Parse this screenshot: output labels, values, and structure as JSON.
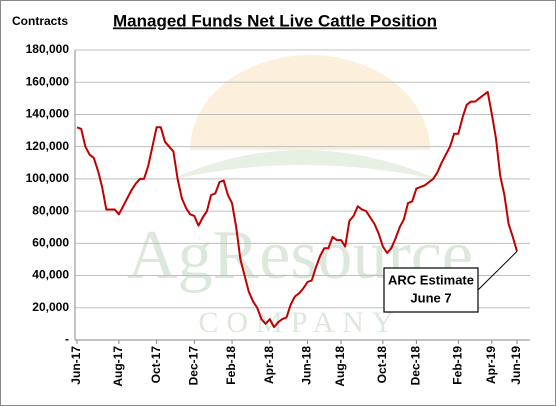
{
  "chart_data": {
    "type": "line",
    "title": "Managed Funds Net Live Cattle Position",
    "y_label": "Contracts",
    "annotation": [
      "ARC Estimate",
      "June 7"
    ],
    "watermark": [
      "AgResource",
      "COMPANY"
    ],
    "categories": [
      "Jun-17",
      null,
      null,
      null,
      null,
      null,
      null,
      null,
      null,
      null,
      "Aug-17",
      null,
      null,
      null,
      null,
      null,
      null,
      null,
      null,
      "Oct-17",
      null,
      null,
      null,
      null,
      null,
      null,
      null,
      null,
      "Dec-17",
      null,
      null,
      null,
      null,
      null,
      null,
      null,
      null,
      "Feb-18",
      null,
      null,
      null,
      null,
      null,
      null,
      null,
      null,
      "Apr-18",
      null,
      null,
      null,
      null,
      null,
      null,
      null,
      null,
      "Jun-18",
      null,
      null,
      null,
      null,
      null,
      null,
      null,
      "Aug-18",
      null,
      null,
      null,
      null,
      null,
      null,
      null,
      null,
      null,
      "Oct-18",
      null,
      null,
      null,
      null,
      null,
      null,
      null,
      "Dec-18",
      null,
      null,
      null,
      null,
      null,
      null,
      null,
      null,
      null,
      "Feb-19",
      null,
      null,
      null,
      null,
      null,
      null,
      null,
      "Apr-19",
      null,
      null,
      null,
      null,
      null,
      "Jun-19"
    ],
    "values": [
      132000,
      131000,
      120000,
      115000,
      113000,
      105000,
      95000,
      81000,
      81000,
      81000,
      78000,
      83000,
      88000,
      93000,
      97000,
      100000,
      100000,
      108000,
      120000,
      132000,
      132000,
      123000,
      120000,
      117000,
      100000,
      88000,
      82000,
      78000,
      77000,
      71000,
      76000,
      80000,
      90000,
      91000,
      98000,
      99000,
      90000,
      85000,
      70000,
      50000,
      40000,
      30000,
      24000,
      20000,
      13000,
      10000,
      13000,
      8000,
      11000,
      13000,
      14000,
      22000,
      27000,
      29000,
      32000,
      36000,
      37000,
      45000,
      52000,
      57000,
      57000,
      64000,
      62000,
      62000,
      58000,
      74000,
      77000,
      83000,
      81000,
      80000,
      76000,
      72000,
      66000,
      58000,
      54000,
      57000,
      63000,
      70000,
      75000,
      85000,
      86000,
      94000,
      95000,
      96000,
      98000,
      100000,
      104000,
      110000,
      115000,
      120000,
      128000,
      128000,
      138000,
      146000,
      148000,
      148000,
      150000,
      152000,
      154000,
      140000,
      125000,
      102000,
      90000,
      72000,
      64000,
      55000
    ],
    "color": "#c00000",
    "ylim": [
      0,
      180000
    ],
    "yticks": [
      {
        "value": 0,
        "label": "-"
      },
      {
        "value": 20000,
        "label": "20,000"
      },
      {
        "value": 40000,
        "label": "40,000"
      },
      {
        "value": 60000,
        "label": "60,000"
      },
      {
        "value": 80000,
        "label": "80,000"
      },
      {
        "value": 100000,
        "label": "100,000"
      },
      {
        "value": 120000,
        "label": "120,000"
      },
      {
        "value": 140000,
        "label": "140,000"
      },
      {
        "value": 160000,
        "label": "160,000"
      },
      {
        "value": 180000,
        "label": "180,000"
      }
    ],
    "grid": true
  }
}
